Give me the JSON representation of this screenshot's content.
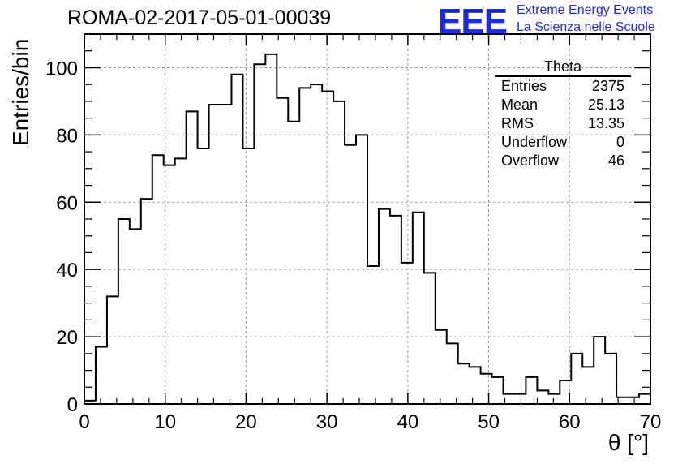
{
  "header": {
    "title": "ROMA-02-2017-05-01-00039",
    "logo_text": "EEE",
    "logo_line1": "Extreme Energy Events",
    "logo_line2": "La Scienza nelle Scuole"
  },
  "stats": {
    "title": "Theta",
    "rows": [
      {
        "label": "Entries",
        "value": "2375"
      },
      {
        "label": "Mean",
        "value": "25.13"
      },
      {
        "label": "RMS",
        "value": "13.35"
      },
      {
        "label": "Underflow",
        "value": "0"
      },
      {
        "label": "Overflow",
        "value": "46"
      }
    ]
  },
  "colors": {
    "line": "#000000",
    "grid": "#9a9a9a",
    "logo": "#1e2bd6"
  },
  "chart_data": {
    "type": "bar",
    "histogram": true,
    "xlabel": "θ [°]",
    "ylabel": "Entries/bin",
    "xlim": [
      0,
      70
    ],
    "ylim": [
      0,
      110
    ],
    "xticks": [
      0,
      10,
      20,
      30,
      40,
      50,
      60,
      70
    ],
    "yticks": [
      0,
      20,
      40,
      60,
      80,
      100
    ],
    "grid": true,
    "bin_width": 1.4,
    "bin_edges_start": 0,
    "values": [
      1,
      17,
      32,
      55,
      52,
      61,
      74,
      71,
      73,
      87,
      76,
      89,
      89,
      98,
      76,
      101,
      104,
      91,
      84,
      94,
      95,
      93,
      90,
      77,
      80,
      41,
      58,
      56,
      42,
      57,
      39,
      22,
      18,
      12,
      11,
      9,
      8,
      3,
      3,
      8,
      4,
      3,
      7,
      15,
      11,
      20,
      15,
      2,
      2,
      3
    ]
  }
}
